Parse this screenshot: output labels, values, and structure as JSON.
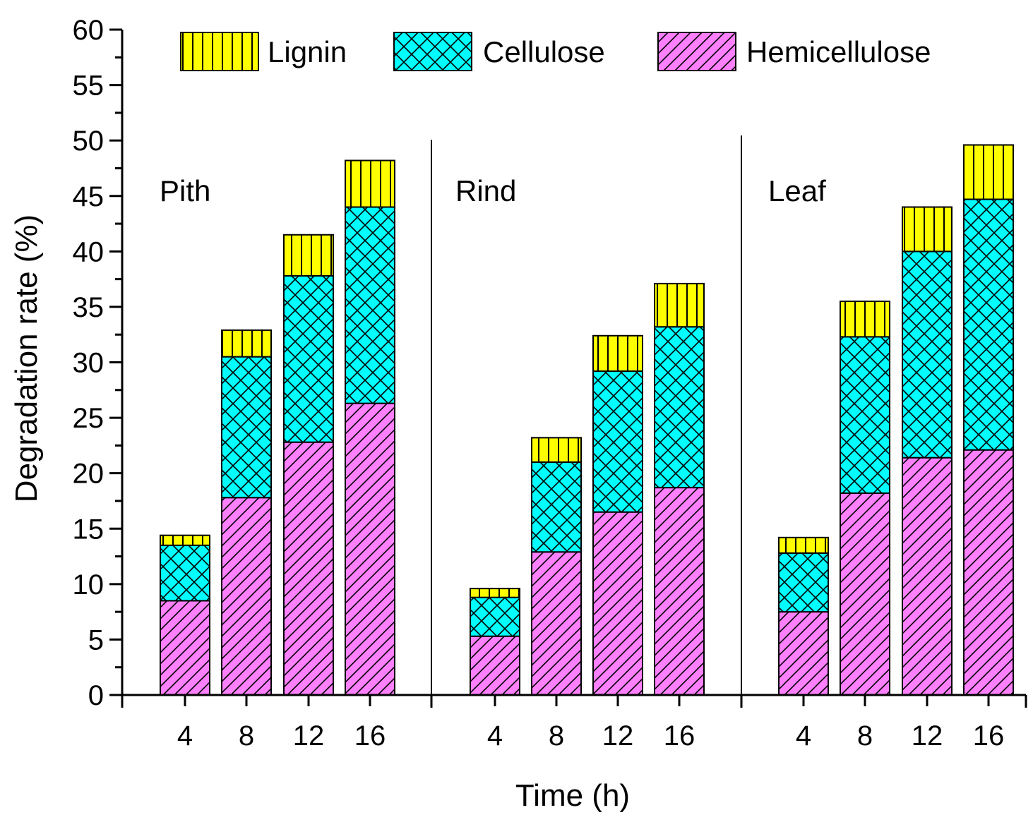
{
  "colors": {
    "Lignin": "#ffff00",
    "Cellulose": "#00ffff",
    "Hemicellulose": "#ff80ff",
    "axis": "#000000"
  },
  "patterns": {
    "Lignin": "vertical-lines",
    "Cellulose": "crosshatch",
    "Hemicellulose": "diagonal-lines"
  },
  "chart_data": {
    "type": "bar",
    "stacked": true,
    "title": "",
    "xlabel": "Time (h)",
    "ylabel": "Degradation rate (%)",
    "ylim": [
      0,
      60
    ],
    "yticks": [
      0,
      5,
      10,
      15,
      20,
      25,
      30,
      35,
      40,
      45,
      50,
      55,
      60
    ],
    "legend_position": "top",
    "groups": [
      {
        "label": "Pith",
        "categories": [
          "4",
          "8",
          "12",
          "16"
        ],
        "series": [
          {
            "name": "Hemicellulose",
            "values": [
              8.5,
              17.8,
              22.8,
              26.3
            ]
          },
          {
            "name": "Cellulose",
            "values": [
              5.0,
              12.7,
              15.0,
              17.7
            ]
          },
          {
            "name": "Lignin",
            "values": [
              0.9,
              2.4,
              3.7,
              4.2
            ]
          }
        ]
      },
      {
        "label": "Rind",
        "categories": [
          "4",
          "8",
          "12",
          "16"
        ],
        "series": [
          {
            "name": "Hemicellulose",
            "values": [
              5.3,
              12.9,
              16.5,
              18.7
            ]
          },
          {
            "name": "Cellulose",
            "values": [
              3.5,
              8.1,
              12.7,
              14.5
            ]
          },
          {
            "name": "Lignin",
            "values": [
              0.8,
              2.2,
              3.2,
              3.9
            ]
          }
        ]
      },
      {
        "label": "Leaf",
        "categories": [
          "4",
          "8",
          "12",
          "16"
        ],
        "series": [
          {
            "name": "Hemicellulose",
            "values": [
              7.5,
              18.2,
              21.4,
              22.1
            ]
          },
          {
            "name": "Cellulose",
            "values": [
              5.3,
              14.1,
              18.6,
              22.6
            ]
          },
          {
            "name": "Lignin",
            "values": [
              1.4,
              3.2,
              4.0,
              4.9
            ]
          }
        ]
      }
    ],
    "legend": [
      "Lignin",
      "Cellulose",
      "Hemicellulose"
    ]
  }
}
